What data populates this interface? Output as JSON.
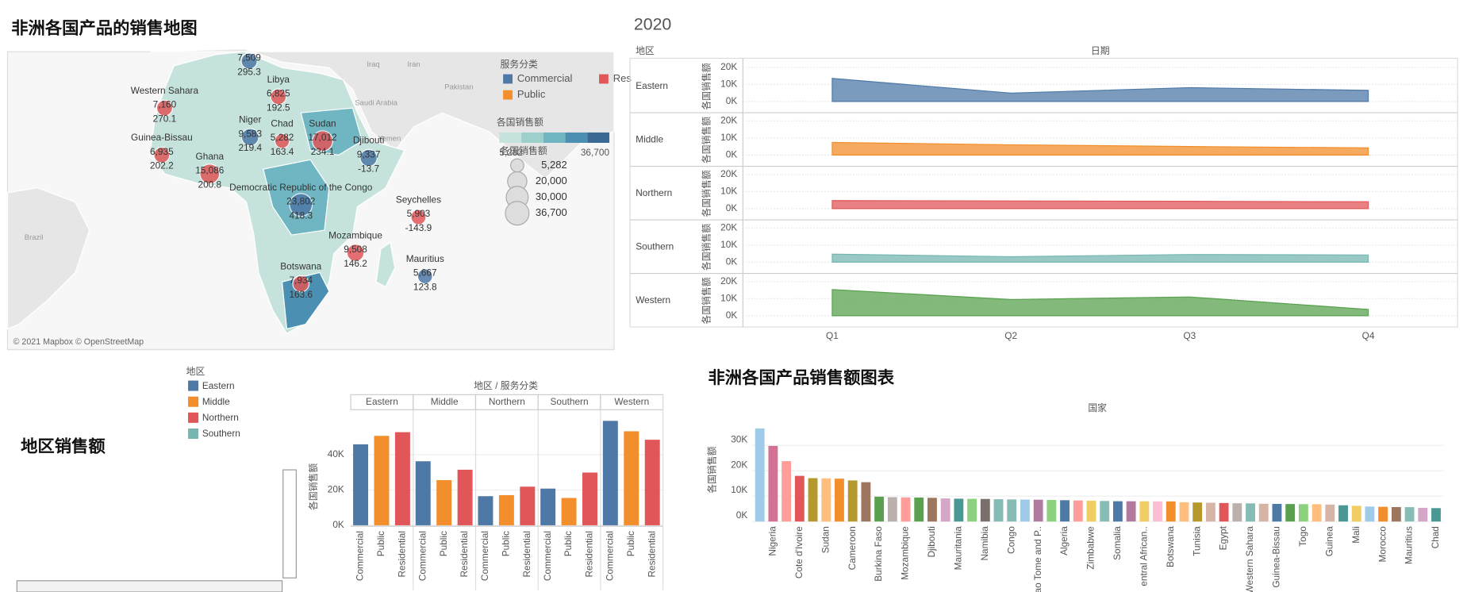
{
  "chart_data": [
    {
      "type": "map",
      "title": "非洲各国产品的销售地图",
      "names": [
        null,
        "Libya",
        "Western Sahara",
        "Niger",
        "Chad",
        "Sudan",
        "Djibouti",
        "Guinea-Bissau",
        "Ghana",
        "Democratic Republic of the Congo",
        "Seychelles",
        "Mozambique",
        "Mauritius",
        "Botswana"
      ],
      "values": [
        7509,
        6825,
        7160,
        9583,
        5282,
        17012,
        9337,
        6935,
        15086,
        23802,
        5903,
        9508,
        5667,
        7934
      ],
      "value_labels": [
        "7,509",
        "6,825",
        "7,160",
        "9,583",
        "5,282",
        "17,012",
        "9,337",
        "6,935",
        "15,086",
        "23,802",
        "5,903",
        "9,508",
        "5,667",
        "7,934"
      ],
      "profit": [
        295.3,
        192.5,
        270.1,
        219.4,
        163.4,
        234.1,
        -13.7,
        202.2,
        200.8,
        418.3,
        -143.9,
        146.2,
        123.8,
        163.6
      ],
      "places": [
        "Iraq",
        "Iran",
        "Pakistan",
        "Saudi Arabia",
        "Yemen",
        "Brazil"
      ],
      "legend_title": "服务分类",
      "legend": [
        {
          "name": "Commercial",
          "color": "#4e79a7"
        },
        {
          "name": "Public",
          "color": "#f28e2b"
        },
        {
          "name": "Res",
          "color": "#e15759"
        }
      ],
      "color_legend_title": "各国销售额",
      "color_scale": [
        "#c5e3dc",
        "#9dd0cb",
        "#6fb5c2",
        "#4b90b2",
        "#3b6a94"
      ],
      "color_legend_ticks": [
        {
          "value": 5282,
          "label": "5,282"
        },
        {
          "value": 36700,
          "label": "36,700"
        }
      ],
      "size_legend_title": "各国销售额",
      "size_legend": [
        {
          "value": 5282,
          "label": "5,282"
        },
        {
          "value": 20000,
          "label": "20,000"
        },
        {
          "value": 30000,
          "label": "30,000"
        },
        {
          "value": 36700,
          "label": "36,700"
        }
      ],
      "attribution": "© 2021 Mapbox © OpenStreetMap"
    },
    {
      "type": "area",
      "title": "2020",
      "row_header": "地区",
      "column_header": "日期",
      "y_label": "各国销售额",
      "x": [
        "Q1",
        "Q2",
        "Q3",
        "Q4"
      ],
      "series": [
        {
          "name": "Eastern",
          "color": "#4e79a7",
          "values": [
            13500,
            4900,
            8100,
            6500
          ]
        },
        {
          "name": "Middle",
          "color": "#f28e2b",
          "values": [
            7400,
            6000,
            5000,
            4200
          ]
        },
        {
          "name": "Northern",
          "color": "#e15759",
          "values": [
            4700,
            4500,
            4300,
            4000
          ]
        },
        {
          "name": "Southern",
          "color": "#76b7b2",
          "values": [
            4700,
            3200,
            4500,
            4200
          ]
        },
        {
          "name": "Western",
          "color": "#59a14f",
          "values": [
            15300,
            9500,
            11000,
            3700
          ]
        }
      ],
      "ylim": [
        0,
        22000
      ],
      "yticks": [
        {
          "value": 0,
          "label": "0K"
        },
        {
          "value": 10000,
          "label": "10K"
        },
        {
          "value": 20000,
          "label": "20K"
        }
      ],
      "grid": true
    },
    {
      "type": "grouped_bar",
      "title": "地区销售额",
      "header": "地区 / 服务分类",
      "y_label": "各国销售额",
      "categories": [
        "Eastern",
        "Middle",
        "Northern",
        "Southern",
        "Western"
      ],
      "series": [
        {
          "name": "Commercial",
          "color": "#4e79a7",
          "values": [
            45900,
            36300,
            16500,
            20800,
            59200
          ]
        },
        {
          "name": "Public",
          "color": "#f28e2b",
          "values": [
            50700,
            25600,
            17100,
            15500,
            53300
          ]
        },
        {
          "name": "Residential",
          "color": "#e15759",
          "values": [
            52800,
            31500,
            21900,
            29900,
            48500
          ]
        }
      ],
      "legend_title": "地区",
      "legend_colors": [
        "#4e79a7",
        "#f28e2b",
        "#e15759",
        "#76b7b2"
      ],
      "ylim": [
        0,
        65000
      ],
      "yticks": [
        {
          "value": 0,
          "label": "0K"
        },
        {
          "value": 20000,
          "label": "20K"
        },
        {
          "value": 40000,
          "label": "40K"
        }
      ],
      "grid": true
    },
    {
      "type": "bar",
      "title": "非洲各国产品销售额图表",
      "x_label": "国家",
      "y_label": "各国销售额",
      "categories": [
        null,
        "Nigeria",
        null,
        "Cote d'Ivoire",
        null,
        "Sudan",
        null,
        "Cameroon",
        null,
        "Burkina Faso",
        null,
        "Mozambique",
        null,
        "Djibouti",
        null,
        "Mauritania",
        null,
        "Namibia",
        null,
        "Congo",
        null,
        "ao Tome and P..",
        null,
        "Algeria",
        null,
        "Zimbabwe",
        null,
        "Somalia",
        null,
        "entral African..",
        null,
        "Botswana",
        null,
        "Tunisia",
        null,
        "Egypt",
        null,
        "Western Sahara",
        null,
        "Guinea-Bissau",
        null,
        "Togo",
        null,
        "Guinea",
        null,
        "Mali",
        null,
        "Morocco",
        null,
        "Mauritius",
        null,
        "Chad"
      ],
      "values": [
        36700,
        29800,
        23802,
        18000,
        17100,
        17012,
        16900,
        16200,
        15500,
        9800,
        9600,
        9508,
        9450,
        9337,
        9100,
        9000,
        8950,
        8900,
        8800,
        8700,
        8650,
        8600,
        8500,
        8400,
        8300,
        8200,
        8100,
        8000,
        7990,
        7980,
        7950,
        7934,
        7600,
        7500,
        7400,
        7300,
        7200,
        7160,
        7000,
        6935,
        6900,
        6850,
        6825,
        6700,
        6400,
        6200,
        5903,
        5800,
        5700,
        5667,
        5400,
        5282
      ],
      "colors": [
        "#a0cbe8",
        "#d37295",
        "#ff9d9a",
        "#e15759",
        "#b6992d",
        "#ffbe7d",
        "#f28e2b",
        "#b6992d",
        "#9d7660",
        "#59a14f",
        "#bab0ac",
        "#ff9d9a",
        "#59a14f",
        "#9d7660",
        "#d4a6c8",
        "#499894",
        "#8cd17d",
        "#79706e",
        "#86bcb6",
        "#86bcb6",
        "#a0cbe8",
        "#b07aa1",
        "#8cd17d",
        "#4e79a7",
        "#ff9d9a",
        "#f1ce63",
        "#86bcb6",
        "#4e79a7",
        "#b07aa1",
        "#f1ce63",
        "#fabfd2",
        "#f28e2b",
        "#ffbe7d",
        "#b6992d",
        "#d7b5a6",
        "#e15759",
        "#bab0ac",
        "#86bcb6",
        "#d7b5a6",
        "#4e79a7",
        "#59a14f",
        "#8cd17d",
        "#ffbe7d",
        "#d7b5a6",
        "#499894",
        "#f1ce63",
        "#a0cbe8",
        "#f28e2b",
        "#9d7660",
        "#86bcb6",
        "#d4a6c8",
        "#499894"
      ],
      "ylim": [
        0,
        40000
      ],
      "yticks": [
        {
          "value": 0,
          "label": "0K"
        },
        {
          "value": 10000,
          "label": "10K"
        },
        {
          "value": 20000,
          "label": "20K"
        },
        {
          "value": 30000,
          "label": "30K"
        }
      ],
      "grid": true
    }
  ]
}
